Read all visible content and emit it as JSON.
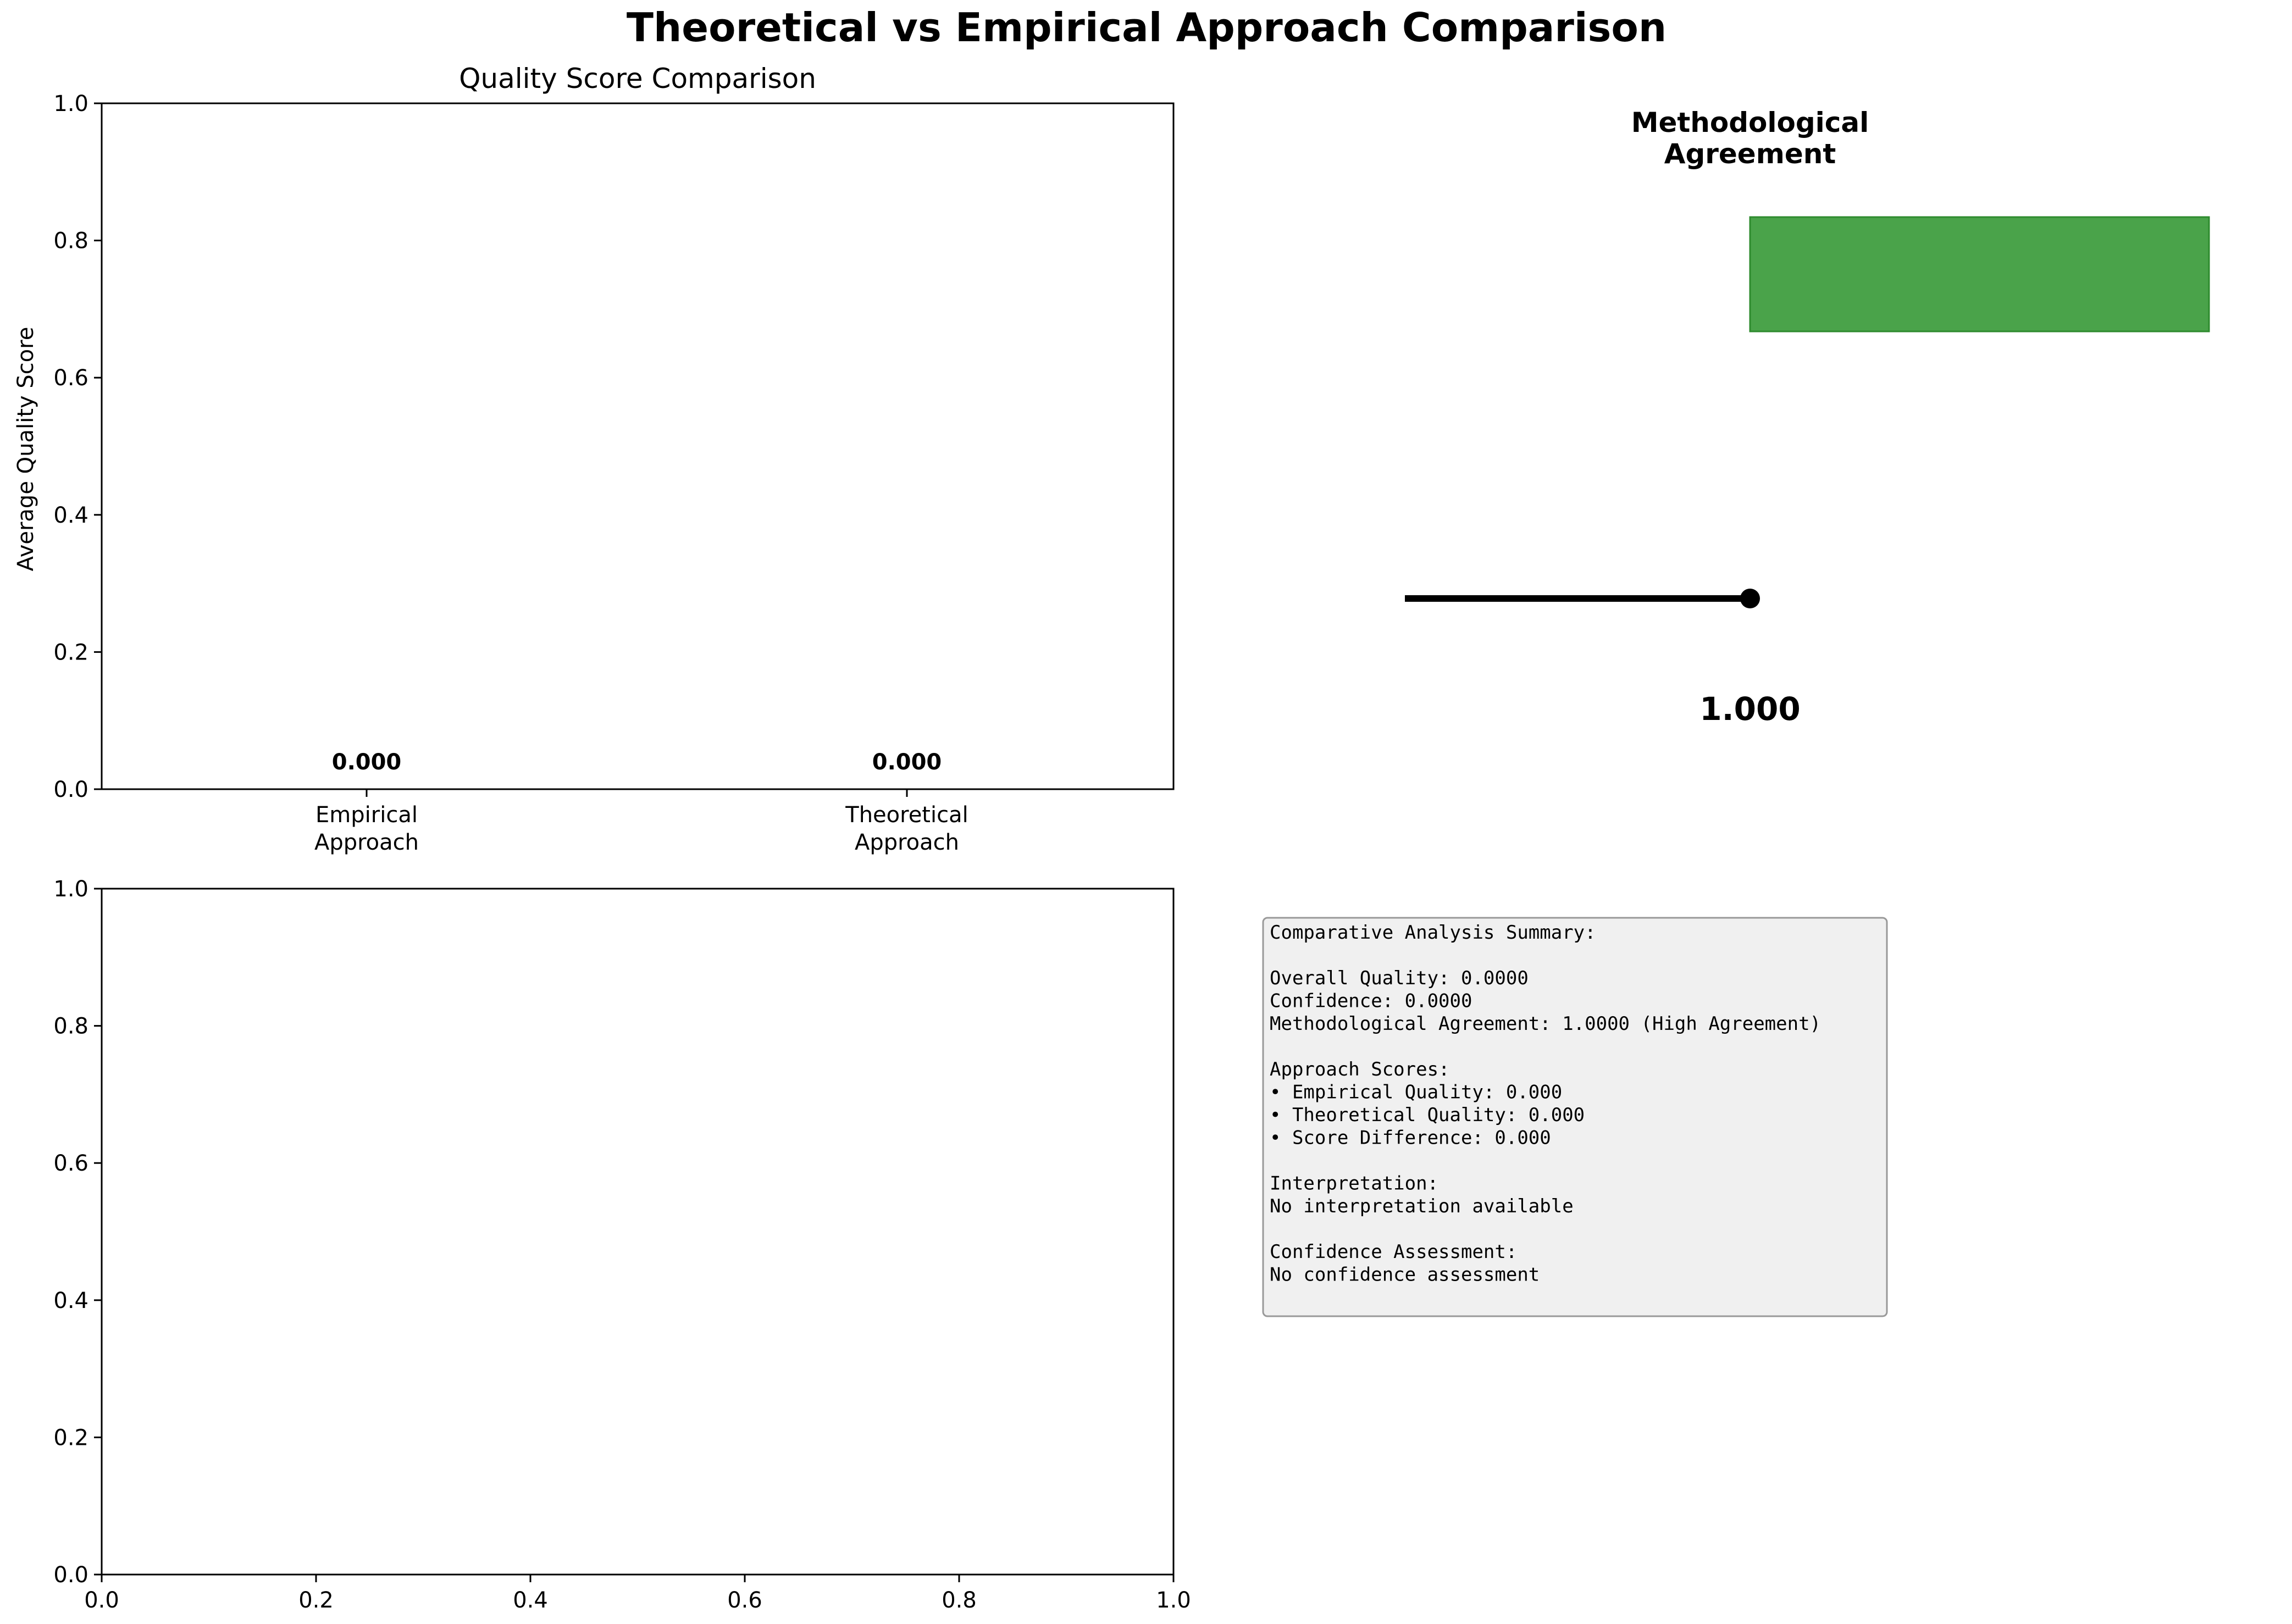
{
  "figure": {
    "title": "Theoretical vs Empirical Approach Comparison"
  },
  "chart_data": [
    {
      "type": "bar",
      "title": "Quality Score Comparison",
      "xlabel": "",
      "ylabel": "Average Quality Score",
      "ylim": [
        0,
        1
      ],
      "yticks": [
        "0.0",
        "0.2",
        "0.4",
        "0.6",
        "0.8",
        "1.0"
      ],
      "categories": [
        {
          "lines": [
            "Empirical",
            "Approach"
          ]
        },
        {
          "lines": [
            "Theoretical",
            "Approach"
          ]
        }
      ],
      "values": [
        0.0,
        0.0
      ],
      "value_labels": [
        "0.000",
        "0.000"
      ]
    },
    {
      "type": "gauge",
      "title_lines": [
        "Methodological",
        "Agreement"
      ],
      "value": 1.0,
      "value_label": "1.000",
      "band_color": "#4aa34a",
      "band_edge_color": "#2e8b2e",
      "needle_color": "#000000"
    },
    {
      "type": "scatter",
      "title": "",
      "xlim": [
        0,
        1
      ],
      "ylim": [
        0,
        1
      ],
      "xticks": [
        "0.0",
        "0.2",
        "0.4",
        "0.6",
        "0.8",
        "1.0"
      ],
      "yticks": [
        "0.0",
        "0.2",
        "0.4",
        "0.6",
        "0.8",
        "1.0"
      ],
      "points": []
    }
  ],
  "summary_box": {
    "background": "#f0f0f0",
    "lines": [
      "Comparative Analysis Summary:",
      "",
      "Overall Quality: 0.0000",
      "Confidence: 0.0000",
      "Methodological Agreement: 1.0000 (High Agreement)",
      "",
      "Approach Scores:",
      "• Empirical Quality: 0.000",
      "• Theoretical Quality: 0.000",
      "• Score Difference: 0.000",
      "",
      "Interpretation:",
      "No interpretation available",
      "",
      "Confidence Assessment:",
      "No confidence assessment"
    ]
  }
}
